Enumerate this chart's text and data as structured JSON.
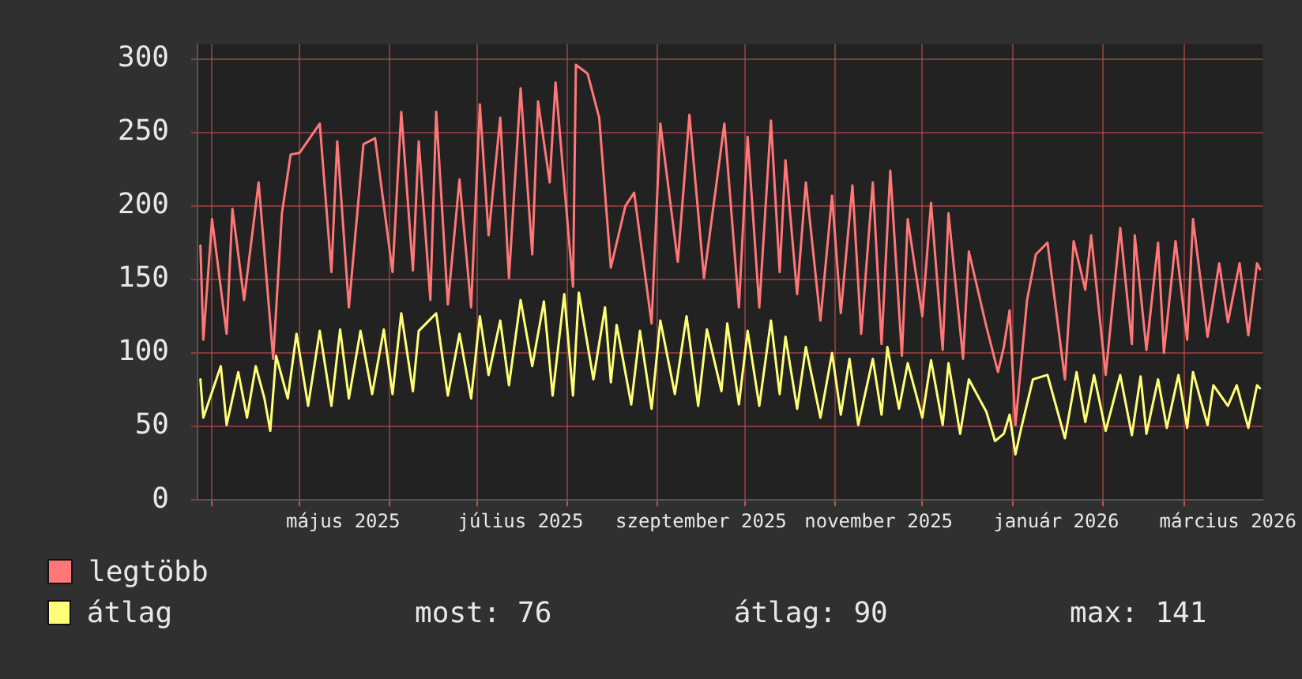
{
  "chart_data": {
    "type": "line",
    "xlim": [
      "2025-03-27",
      "2026-03-28"
    ],
    "xticks": [
      {
        "value": "2025-04-01",
        "label": null
      },
      {
        "value": "2025-05-01",
        "label": null
      },
      {
        "value": "2025-05-16",
        "label": "május 2025"
      },
      {
        "value": "2025-06-01",
        "label": null
      },
      {
        "value": "2025-07-01",
        "label": null
      },
      {
        "value": "2025-07-16",
        "label": "július 2025"
      },
      {
        "value": "2025-08-01",
        "label": null
      },
      {
        "value": "2025-09-01",
        "label": null
      },
      {
        "value": "2025-09-16",
        "label": "szeptember 2025"
      },
      {
        "value": "2025-10-01",
        "label": null
      },
      {
        "value": "2025-11-01",
        "label": null
      },
      {
        "value": "2025-11-16",
        "label": "november 2025"
      },
      {
        "value": "2025-12-01",
        "label": null
      },
      {
        "value": "2026-01-01",
        "label": null
      },
      {
        "value": "2026-01-16",
        "label": "január 2026"
      },
      {
        "value": "2026-02-01",
        "label": null
      },
      {
        "value": "2026-03-01",
        "label": null
      },
      {
        "value": "2026-03-16",
        "label": "március 2026"
      }
    ],
    "ylim": [
      0,
      310
    ],
    "yticks": [
      0,
      50,
      100,
      150,
      200,
      250,
      300
    ],
    "grid": true,
    "legend": "bottom left",
    "marker": "none",
    "annotations": [
      "most: 76",
      "átlag: 90",
      "max: 141"
    ],
    "series": [
      {
        "name": "legtöbb",
        "color": "#ff7777",
        "x": [
          "2025-03-28",
          "2025-03-29",
          "2025-04-01",
          "2025-04-06",
          "2025-04-08",
          "2025-04-12",
          "2025-04-17",
          "2025-04-22",
          "2025-04-25",
          "2025-04-28",
          "2025-05-01",
          "2025-05-08",
          "2025-05-12",
          "2025-05-14",
          "2025-05-18",
          "2025-05-23",
          "2025-05-27",
          "2025-06-02",
          "2025-06-05",
          "2025-06-09",
          "2025-06-11",
          "2025-06-15",
          "2025-06-17",
          "2025-06-21",
          "2025-06-25",
          "2025-06-29",
          "2025-07-02",
          "2025-07-05",
          "2025-07-09",
          "2025-07-12",
          "2025-07-16",
          "2025-07-20",
          "2025-07-22",
          "2025-07-26",
          "2025-07-28",
          "2025-08-03",
          "2025-08-04",
          "2025-08-08",
          "2025-08-12",
          "2025-08-16",
          "2025-08-21",
          "2025-08-24",
          "2025-08-30",
          "2025-09-02",
          "2025-09-08",
          "2025-09-12",
          "2025-09-17",
          "2025-09-24",
          "2025-09-29",
          "2025-10-02",
          "2025-10-06",
          "2025-10-10",
          "2025-10-13",
          "2025-10-15",
          "2025-10-19",
          "2025-10-22",
          "2025-10-27",
          "2025-10-31",
          "2025-11-03",
          "2025-11-07",
          "2025-11-10",
          "2025-11-14",
          "2025-11-17",
          "2025-11-20",
          "2025-11-24",
          "2025-11-26",
          "2025-12-01",
          "2025-12-04",
          "2025-12-08",
          "2025-12-10",
          "2025-12-15",
          "2025-12-17",
          "2025-12-23",
          "2025-12-27",
          "2025-12-29",
          "2025-12-31",
          "2026-01-02",
          "2026-01-06",
          "2026-01-09",
          "2026-01-13",
          "2026-01-19",
          "2026-01-22",
          "2026-01-26",
          "2026-01-28",
          "2026-02-02",
          "2026-02-07",
          "2026-02-11",
          "2026-02-12",
          "2026-02-16",
          "2026-02-20",
          "2026-02-22",
          "2026-02-26",
          "2026-03-02",
          "2026-03-04",
          "2026-03-09",
          "2026-03-13",
          "2026-03-16",
          "2026-03-20",
          "2026-03-23",
          "2026-03-26",
          "2026-03-27"
        ],
        "values": [
          173,
          109,
          191,
          113,
          198,
          136,
          216,
          96,
          195,
          235,
          236,
          256,
          155,
          244,
          131,
          242,
          246,
          155,
          264,
          156,
          244,
          136,
          264,
          133,
          218,
          131,
          269,
          180,
          260,
          151,
          280,
          167,
          271,
          216,
          284,
          145,
          296,
          290,
          260,
          158,
          200,
          209,
          120,
          256,
          162,
          262,
          151,
          256,
          131,
          247,
          131,
          258,
          155,
          231,
          140,
          216,
          122,
          207,
          127,
          214,
          113,
          216,
          106,
          224,
          98,
          191,
          125,
          202,
          102,
          195,
          96,
          169,
          118,
          87,
          104,
          129,
          51,
          136,
          167,
          175,
          82,
          176,
          143,
          180,
          85,
          185,
          106,
          180,
          102,
          175,
          100,
          176,
          109,
          191,
          111,
          161,
          121,
          161,
          112,
          161,
          157
        ]
      },
      {
        "name": "átlag",
        "color": "#ffff77",
        "x": [
          "2025-03-28",
          "2025-03-29",
          "2025-04-04",
          "2025-04-06",
          "2025-04-10",
          "2025-04-13",
          "2025-04-16",
          "2025-04-19",
          "2025-04-21",
          "2025-04-23",
          "2025-04-27",
          "2025-04-30",
          "2025-05-04",
          "2025-05-08",
          "2025-05-12",
          "2025-05-15",
          "2025-05-18",
          "2025-05-22",
          "2025-05-26",
          "2025-05-30",
          "2025-06-02",
          "2025-06-05",
          "2025-06-09",
          "2025-06-11",
          "2025-06-17",
          "2025-06-21",
          "2025-06-25",
          "2025-06-29",
          "2025-07-02",
          "2025-07-05",
          "2025-07-09",
          "2025-07-12",
          "2025-07-16",
          "2025-07-20",
          "2025-07-24",
          "2025-07-27",
          "2025-07-31",
          "2025-08-03",
          "2025-08-05",
          "2025-08-10",
          "2025-08-14",
          "2025-08-16",
          "2025-08-18",
          "2025-08-23",
          "2025-08-26",
          "2025-08-30",
          "2025-09-02",
          "2025-09-07",
          "2025-09-11",
          "2025-09-15",
          "2025-09-18",
          "2025-09-23",
          "2025-09-25",
          "2025-09-29",
          "2025-10-02",
          "2025-10-06",
          "2025-10-10",
          "2025-10-13",
          "2025-10-15",
          "2025-10-19",
          "2025-10-22",
          "2025-10-27",
          "2025-10-31",
          "2025-11-03",
          "2025-11-06",
          "2025-11-09",
          "2025-11-14",
          "2025-11-17",
          "2025-11-19",
          "2025-11-23",
          "2025-11-26",
          "2025-12-01",
          "2025-12-04",
          "2025-12-08",
          "2025-12-10",
          "2025-12-14",
          "2025-12-17",
          "2025-12-23",
          "2025-12-26",
          "2025-12-29",
          "2025-12-31",
          "2026-01-02",
          "2026-01-04",
          "2026-01-08",
          "2026-01-13",
          "2026-01-19",
          "2026-01-23",
          "2026-01-26",
          "2026-01-29",
          "2026-02-02",
          "2026-02-07",
          "2026-02-11",
          "2026-02-14",
          "2026-02-16",
          "2026-02-20",
          "2026-02-23",
          "2026-02-27",
          "2026-03-02",
          "2026-03-04",
          "2026-03-09",
          "2026-03-11",
          "2026-03-16",
          "2026-03-19",
          "2026-03-23",
          "2026-03-26",
          "2026-03-27"
        ],
        "values": [
          82,
          56,
          91,
          51,
          87,
          56,
          91,
          69,
          47,
          98,
          69,
          113,
          64,
          115,
          64,
          116,
          69,
          115,
          72,
          116,
          72,
          127,
          74,
          115,
          127,
          71,
          113,
          69,
          125,
          85,
          122,
          78,
          136,
          91,
          135,
          71,
          140,
          71,
          141,
          82,
          131,
          80,
          119,
          65,
          115,
          62,
          122,
          72,
          125,
          64,
          116,
          74,
          120,
          65,
          115,
          64,
          122,
          72,
          111,
          62,
          104,
          56,
          100,
          58,
          96,
          51,
          96,
          58,
          104,
          62,
          93,
          56,
          95,
          51,
          93,
          45,
          82,
          60,
          40,
          45,
          58,
          31,
          49,
          82,
          85,
          42,
          87,
          53,
          85,
          47,
          85,
          44,
          84,
          45,
          82,
          49,
          85,
          49,
          87,
          51,
          78,
          64,
          78,
          49,
          78,
          76
        ]
      }
    ]
  }
}
